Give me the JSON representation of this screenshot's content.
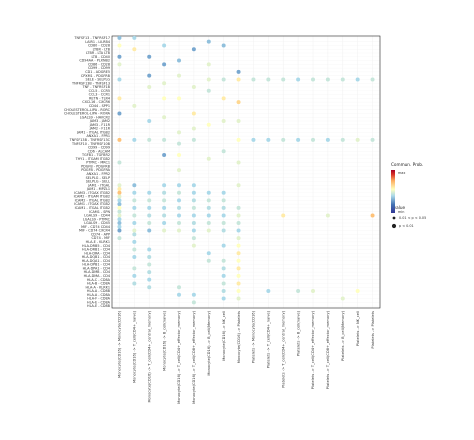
{
  "chart_data": {
    "type": "scatter",
    "title": "",
    "xlabel": "",
    "ylabel": "",
    "grid": true,
    "legend_position": "right",
    "y_categories": [
      "TNFSF13 - TNFRSF17",
      "LAIR1 - LILRB4",
      "CD80 - CD28",
      "LTBR - LTB",
      "LTBR - LTA LTB",
      "LTB - CD40",
      "CD94AA - PLXNB2",
      "CD86 - CD28",
      "CD99 - CD99",
      "CD1 - ADGRE5",
      "CPXM1 - PDGFRB",
      "SELE - SELPLG",
      "TNFRSF13B - TNFSF13",
      "TNF - TNFRSF1B",
      "CCL5 - CCR5",
      "CCL3 - CCR1",
      "RETN - TLR4",
      "CXCL16 - CXCR6",
      "CD44 - SPP1",
      "CHOLESTEROL-LIPA - RORC",
      "CHOLESTEROL-LIPA - RORA",
      "LGALS9 - HAVCR2",
      "JAM3 - JAM2",
      "JAM3 - F11R",
      "JAM2 - F11R",
      "JAM1 - ITGAL ITGB2",
      "ANXA1 - FPR1",
      "TNFSF13B - TNFRSF13C",
      "TNFSF10 - TNFRSF10B",
      "CD99 - CD99",
      "CD6 - ALCAM",
      "TGFB1 - TGFBR2",
      "THY1 - ITGAM ITGB2",
      "PTPRC - MRC1",
      "PDGFB - PDGFRB",
      "PDGFB - PDGFRA",
      "ANXA1 - FPR2",
      "SELPLG - SELP",
      "SELPLG - SELL",
      "JAM1 - ITGAL",
      "JAM1 - MPZL1",
      "ICAM3 - ITGAX ITGB2",
      "ICAM2 - ITGAM ITGB2",
      "ICAM2 - ITGAL ITGB2",
      "ICAM1 - ITGAX ITGB2",
      "ICAM1 - ITGAL ITGB2",
      "ICAM1 - SPN",
      "LGALS9 - CD44",
      "LGALS9 - PTPRC",
      "LGALS9 - CD45",
      "MIF - CD74 CD44",
      "MIF - CD74 CXCR4",
      "CD74 - APP",
      "CD74 - MIF",
      "HLA-E - KLRK1",
      "HLA-DRB5 - CD4",
      "HLA-DRB1 - CD4",
      "HLA-DRA - CD4",
      "HLA-DQB1 - CD4",
      "HLA-DQA1 - CD4",
      "HLA-DPB1 - CD4",
      "HLA-DPA1 - CD4",
      "HLA-DMB - CD4",
      "HLA-DMA - CD4",
      "HLA-C - CD8A",
      "HLA-B - CD8A",
      "HLA-A - KLRK1",
      "HLA-A - CD8B",
      "HLA-A - CD8A",
      "HLA-F - CD8A",
      "HLA-E - CD8A",
      "HLA-E - CD8B"
    ],
    "x_categories": [
      "Monocyte(CD16) -> Monocyte(CD16)",
      "Monocyte(CD16) -> T_cell(CD4+_naive)",
      "Monocyte(CD16) -> T_cell(CD4+_central_memory)",
      "Monocyte(CD16) -> B_cell(naive)",
      "Monocyte(CD16) -> T_cell(CD4+_effector_memory)",
      "Monocyte(CD16) -> T_cell(CD8+_effector_memory)",
      "Monocyte(CD16) -> B_cell(Memory)",
      "Monocyte(CD16) -> NK_cell",
      "Monocyte(CD16) -> Platelets",
      "Platelets -> Monocyte(CD16)",
      "Platelets -> T_cell(CD4+_naive)",
      "Platelets -> T_cell(CD4+_central_memory)",
      "Platelets -> B_cell(naive)",
      "Platelets -> T_cell(CD4+_effector_memory)",
      "Platelets -> T_cell(CD8+_effector_memory)",
      "Platelets -> B_cell(Memory)",
      "Platelets -> NK_cell",
      "Platelets -> Platelets"
    ],
    "points": [
      [
        0,
        0,
        0.35,
        2
      ],
      [
        0,
        2,
        0.55,
        2
      ],
      [
        0,
        5,
        0.3,
        2
      ],
      [
        0,
        7,
        0.5,
        2
      ],
      [
        0,
        11,
        0.4,
        2
      ],
      [
        0,
        16,
        0.6,
        2
      ],
      [
        0,
        20,
        0.3,
        2
      ],
      [
        0,
        27,
        0.7,
        2
      ],
      [
        0,
        33,
        0.45,
        2
      ],
      [
        0,
        39,
        0.5,
        2
      ],
      [
        0,
        40,
        0.6,
        2
      ],
      [
        0,
        41,
        0.7,
        2
      ],
      [
        0,
        42,
        0.5,
        2
      ],
      [
        0,
        43,
        0.4,
        2
      ],
      [
        0,
        44,
        0.35,
        2
      ],
      [
        0,
        45,
        0.55,
        2
      ],
      [
        0,
        46,
        0.45,
        2
      ],
      [
        0,
        47,
        0.5,
        2
      ],
      [
        0,
        48,
        0.4,
        2
      ],
      [
        0,
        49,
        0.35,
        2
      ],
      [
        0,
        50,
        0.4,
        2
      ],
      [
        0,
        51,
        0.3,
        2
      ],
      [
        0,
        53,
        0.45,
        2
      ],
      [
        1,
        0,
        0.4,
        2
      ],
      [
        1,
        3,
        0.6,
        2
      ],
      [
        1,
        18,
        0.5,
        2
      ],
      [
        1,
        27,
        0.4,
        2
      ],
      [
        1,
        39,
        0.35,
        2
      ],
      [
        1,
        41,
        0.4,
        2
      ],
      [
        1,
        43,
        0.45,
        2
      ],
      [
        1,
        45,
        0.4,
        2
      ],
      [
        1,
        47,
        0.45,
        2
      ],
      [
        1,
        49,
        0.4,
        2
      ],
      [
        1,
        51,
        0.5,
        2
      ],
      [
        1,
        52,
        0.42,
        2
      ],
      [
        1,
        54,
        0.4,
        2
      ],
      [
        1,
        56,
        0.45,
        2
      ],
      [
        1,
        58,
        0.4,
        2
      ],
      [
        1,
        61,
        0.45,
        2
      ],
      [
        1,
        63,
        0.4,
        2
      ],
      [
        1,
        65,
        0.42,
        2
      ],
      [
        2,
        5,
        0.3,
        2
      ],
      [
        2,
        10,
        0.3,
        2
      ],
      [
        2,
        13,
        0.5,
        2
      ],
      [
        2,
        22,
        0.4,
        2
      ],
      [
        2,
        27,
        0.45,
        2
      ],
      [
        2,
        41,
        0.4,
        2
      ],
      [
        2,
        43,
        0.45,
        2
      ],
      [
        2,
        45,
        0.4,
        2
      ],
      [
        2,
        47,
        0.42,
        2
      ],
      [
        2,
        49,
        0.45,
        2
      ],
      [
        2,
        51,
        0.35,
        2
      ],
      [
        2,
        56,
        0.4,
        2
      ],
      [
        2,
        58,
        0.42,
        2
      ],
      [
        2,
        60,
        0.45,
        2
      ],
      [
        2,
        62,
        0.42,
        2
      ],
      [
        2,
        64,
        0.4,
        2
      ],
      [
        2,
        66,
        0.42,
        2
      ],
      [
        3,
        2,
        0.4,
        2
      ],
      [
        3,
        7,
        0.3,
        2
      ],
      [
        3,
        12,
        0.5,
        2
      ],
      [
        3,
        16,
        0.55,
        2
      ],
      [
        3,
        21,
        0.5,
        2
      ],
      [
        3,
        27,
        0.45,
        2
      ],
      [
        3,
        31,
        0.3,
        2
      ],
      [
        3,
        39,
        0.4,
        2
      ],
      [
        3,
        41,
        0.42,
        2
      ],
      [
        3,
        43,
        0.45,
        2
      ],
      [
        3,
        45,
        0.4,
        2
      ],
      [
        3,
        47,
        0.42,
        2
      ],
      [
        3,
        49,
        0.4,
        2
      ],
      [
        3,
        51,
        0.5,
        2
      ],
      [
        4,
        6,
        0.35,
        2
      ],
      [
        4,
        10,
        0.5,
        2
      ],
      [
        4,
        16,
        0.55,
        2
      ],
      [
        4,
        25,
        0.5,
        2
      ],
      [
        4,
        28,
        0.45,
        2
      ],
      [
        4,
        31,
        0.55,
        2
      ],
      [
        4,
        35,
        0.5,
        2
      ],
      [
        4,
        39,
        0.4,
        2
      ],
      [
        4,
        41,
        0.45,
        2
      ],
      [
        4,
        43,
        0.4,
        2
      ],
      [
        4,
        45,
        0.42,
        2
      ],
      [
        4,
        47,
        0.4,
        2
      ],
      [
        4,
        49,
        0.45,
        2
      ],
      [
        4,
        51,
        0.5,
        2
      ],
      [
        4,
        66,
        0.45,
        2
      ],
      [
        4,
        68,
        0.4,
        2
      ],
      [
        5,
        3,
        0.3,
        2
      ],
      [
        5,
        13,
        0.5,
        2
      ],
      [
        5,
        20,
        0.6,
        2
      ],
      [
        5,
        24,
        0.5,
        2
      ],
      [
        5,
        27,
        0.45,
        2
      ],
      [
        5,
        39,
        0.4,
        2
      ],
      [
        5,
        41,
        0.4,
        2
      ],
      [
        5,
        43,
        0.42,
        2
      ],
      [
        5,
        45,
        0.45,
        2
      ],
      [
        5,
        47,
        0.4,
        2
      ],
      [
        5,
        49,
        0.42,
        2
      ],
      [
        5,
        51,
        0.4,
        2
      ],
      [
        5,
        53,
        0.45,
        2
      ],
      [
        5,
        55,
        0.5,
        2
      ],
      [
        5,
        68,
        0.4,
        2
      ],
      [
        5,
        70,
        0.45,
        2
      ],
      [
        6,
        1,
        0.35,
        2
      ],
      [
        6,
        7,
        0.5,
        2
      ],
      [
        6,
        11,
        0.5,
        2
      ],
      [
        6,
        14,
        0.45,
        2
      ],
      [
        6,
        23,
        0.55,
        2
      ],
      [
        6,
        32,
        0.5,
        2
      ],
      [
        6,
        41,
        0.4,
        2
      ],
      [
        6,
        43,
        0.45,
        2
      ],
      [
        6,
        45,
        0.42,
        2
      ],
      [
        6,
        47,
        0.4,
        2
      ],
      [
        6,
        49,
        0.45,
        2
      ],
      [
        6,
        51,
        0.5,
        2
      ],
      [
        6,
        57,
        0.4,
        2
      ],
      [
        6,
        59,
        0.45,
        2
      ],
      [
        7,
        2,
        0.35,
        2
      ],
      [
        7,
        11,
        0.45,
        2
      ],
      [
        7,
        16,
        0.6,
        2
      ],
      [
        7,
        22,
        0.5,
        2
      ],
      [
        7,
        30,
        0.45,
        2
      ],
      [
        7,
        41,
        0.4,
        2
      ],
      [
        7,
        43,
        0.45,
        2
      ],
      [
        7,
        45,
        0.42,
        2
      ],
      [
        7,
        47,
        0.4,
        2
      ],
      [
        7,
        49,
        0.45,
        2
      ],
      [
        7,
        51,
        0.42,
        2
      ],
      [
        7,
        55,
        0.4,
        2
      ],
      [
        7,
        59,
        0.45,
        2
      ],
      [
        7,
        61,
        0.42,
        2
      ],
      [
        7,
        63,
        0.4,
        2
      ],
      [
        7,
        65,
        0.45,
        2
      ],
      [
        7,
        67,
        0.42,
        2
      ],
      [
        7,
        69,
        0.4,
        2
      ],
      [
        8,
        9,
        0.3,
        2
      ],
      [
        8,
        11,
        0.6,
        2
      ],
      [
        8,
        17,
        0.65,
        2
      ],
      [
        8,
        22,
        0.5,
        2
      ],
      [
        8,
        27,
        0.55,
        2
      ],
      [
        8,
        33,
        0.5,
        2
      ],
      [
        8,
        39,
        0.5,
        2
      ],
      [
        8,
        45,
        0.45,
        2
      ],
      [
        8,
        47,
        0.5,
        2
      ],
      [
        8,
        49,
        0.45,
        2
      ],
      [
        8,
        51,
        0.4,
        2
      ],
      [
        8,
        53,
        0.5,
        2
      ],
      [
        8,
        55,
        0.55,
        2
      ],
      [
        8,
        57,
        0.6,
        2
      ],
      [
        8,
        59,
        0.55,
        2
      ],
      [
        8,
        61,
        0.6,
        2
      ],
      [
        8,
        63,
        0.55,
        2
      ],
      [
        8,
        65,
        0.6,
        2
      ],
      [
        8,
        67,
        0.55,
        2
      ],
      [
        8,
        69,
        0.5,
        2
      ],
      [
        9,
        11,
        0.45,
        2
      ],
      [
        9,
        27,
        0.4,
        2
      ],
      [
        10,
        11,
        0.45,
        2
      ],
      [
        10,
        27,
        0.4,
        2
      ],
      [
        10,
        67,
        0.4,
        2
      ],
      [
        11,
        11,
        0.45,
        2
      ],
      [
        11,
        27,
        0.45,
        2
      ],
      [
        11,
        47,
        0.6,
        2
      ],
      [
        12,
        11,
        0.4,
        2
      ],
      [
        12,
        27,
        0.4,
        2
      ],
      [
        12,
        67,
        0.45,
        2
      ],
      [
        13,
        11,
        0.45,
        2
      ],
      [
        13,
        27,
        0.45,
        2
      ],
      [
        13,
        67,
        0.5,
        2
      ],
      [
        14,
        11,
        0.45,
        2
      ],
      [
        14,
        27,
        0.4,
        2
      ],
      [
        14,
        47,
        0.5,
        2
      ],
      [
        15,
        11,
        0.45,
        2
      ],
      [
        15,
        27,
        0.45,
        2
      ],
      [
        15,
        69,
        0.5,
        2
      ],
      [
        16,
        11,
        0.4,
        2
      ],
      [
        16,
        27,
        0.5,
        2
      ],
      [
        16,
        67,
        0.55,
        2
      ],
      [
        17,
        11,
        0.45,
        2
      ],
      [
        17,
        27,
        0.45,
        2
      ],
      [
        17,
        47,
        0.7,
        2
      ]
    ],
    "size_legend": {
      "title": "pvalue",
      "entries": [
        "0.01 < p < 0.05",
        "p < 0.01"
      ]
    },
    "color_legend": {
      "title": "Commun. Prob.",
      "max_label": "max",
      "min_label": "min"
    },
    "colors": {
      "low": "#313695",
      "mid": "#ffffbf",
      "high": "#a50026"
    }
  }
}
